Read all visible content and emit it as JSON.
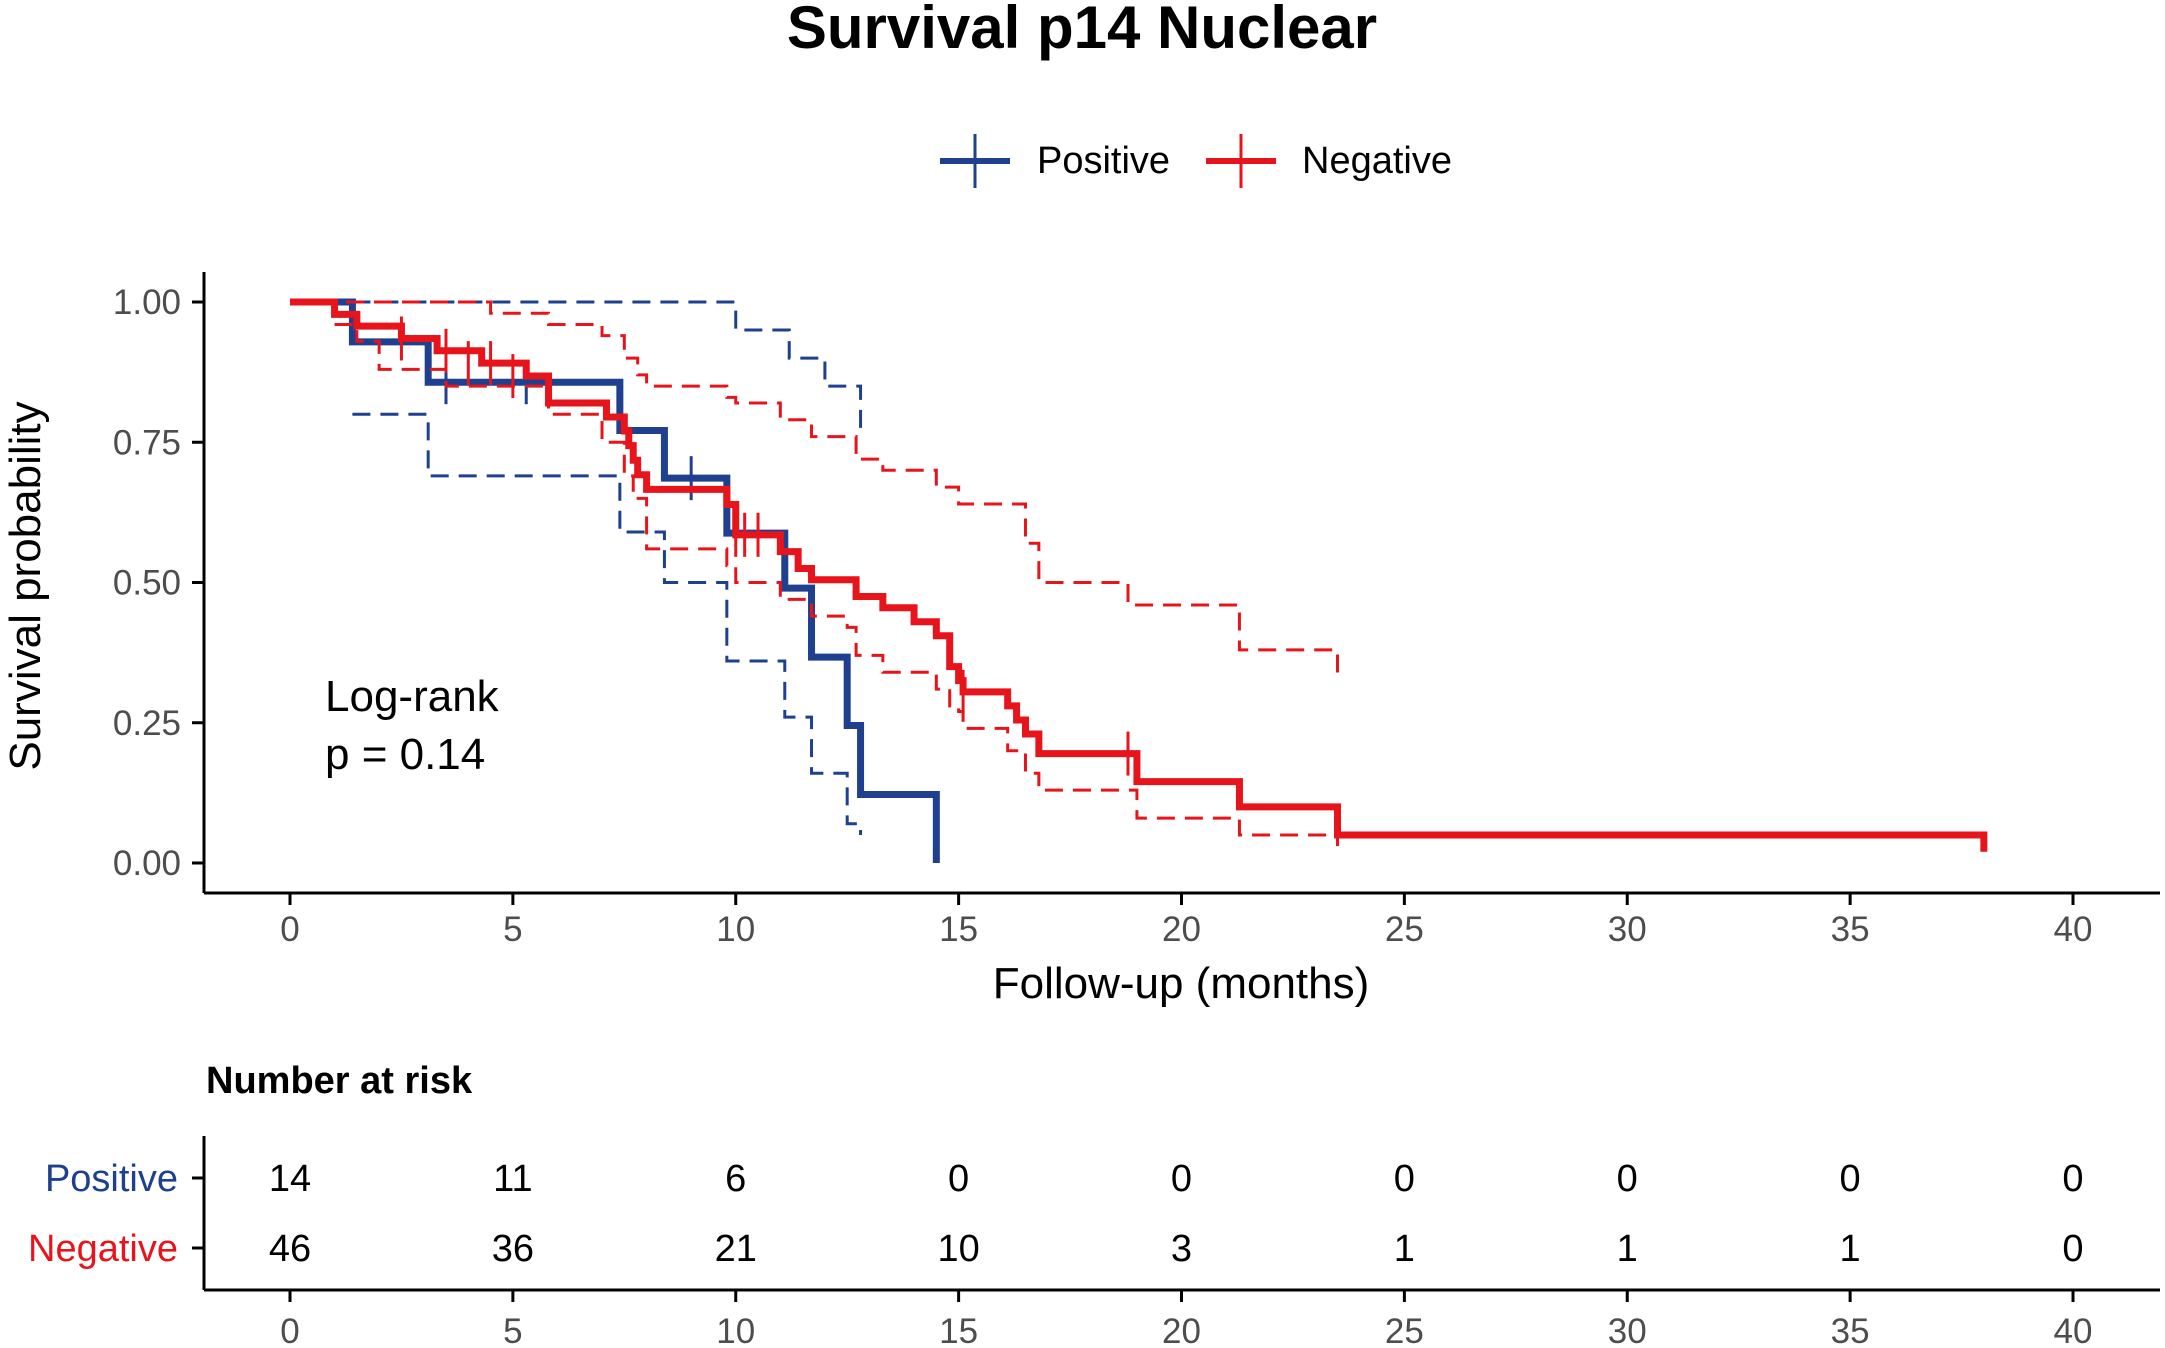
{
  "chart_data": {
    "type": "kaplan-meier",
    "title": "Survival p14 Nuclear",
    "legend": {
      "position": "top",
      "entries": [
        {
          "name": "Positive",
          "color": "#1F3F8F"
        },
        {
          "name": "Negative",
          "color": "#E8141B"
        }
      ]
    },
    "xlabel": "Follow-up (months)",
    "ylabel": "Survival probability",
    "xlim": [
      0,
      40
    ],
    "ylim": [
      0,
      1
    ],
    "xticks": [
      "0",
      "5",
      "10",
      "15",
      "20",
      "25",
      "30",
      "35",
      "40"
    ],
    "xtick_values": [
      0,
      5,
      10,
      15,
      20,
      25,
      30,
      35,
      40
    ],
    "yticks": [
      "0.00",
      "0.25",
      "0.50",
      "0.75",
      "1.00"
    ],
    "ytick_values": [
      0,
      0.25,
      0.5,
      0.75,
      1.0
    ],
    "annotation": {
      "line1": "Log-rank",
      "line2": "p = 0.14"
    },
    "series": [
      {
        "name": "Positive",
        "color": "#1F3F8F",
        "steps": [
          [
            0,
            1.0
          ],
          [
            1.4,
            0.929
          ],
          [
            3.1,
            0.857
          ],
          [
            7.4,
            0.771
          ],
          [
            8.4,
            0.686
          ],
          [
            9.8,
            0.588
          ],
          [
            11.1,
            0.49
          ],
          [
            11.7,
            0.367
          ],
          [
            12.5,
            0.245
          ],
          [
            12.8,
            0.122
          ],
          [
            14.5,
            0.122
          ],
          [
            14.5,
            0.0
          ]
        ],
        "upper": [
          [
            1.4,
            1.0
          ],
          [
            9.8,
            1.0
          ],
          [
            10.0,
            0.95
          ],
          [
            11.1,
            0.95
          ],
          [
            11.2,
            0.9
          ],
          [
            11.7,
            0.9
          ],
          [
            12.0,
            0.85
          ],
          [
            12.5,
            0.85
          ],
          [
            12.8,
            0.77
          ],
          [
            12.8,
            0.77
          ]
        ],
        "lower": [
          [
            1.4,
            0.8
          ],
          [
            3.1,
            0.8
          ],
          [
            3.1,
            0.69
          ],
          [
            7.4,
            0.69
          ],
          [
            7.4,
            0.59
          ],
          [
            8.4,
            0.59
          ],
          [
            8.4,
            0.5
          ],
          [
            9.8,
            0.5
          ],
          [
            9.8,
            0.36
          ],
          [
            11.1,
            0.36
          ],
          [
            11.1,
            0.26
          ],
          [
            11.7,
            0.26
          ],
          [
            11.7,
            0.16
          ],
          [
            12.5,
            0.16
          ],
          [
            12.5,
            0.07
          ],
          [
            12.8,
            0.07
          ],
          [
            12.8,
            0.05
          ]
        ],
        "censors": [
          [
            3.5,
            0.857
          ],
          [
            5.3,
            0.857
          ],
          [
            9.0,
            0.686
          ]
        ]
      },
      {
        "name": "Negative",
        "color": "#E8141B",
        "steps": [
          [
            0,
            1.0
          ],
          [
            1.0,
            0.978
          ],
          [
            1.5,
            0.957
          ],
          [
            2.5,
            0.935
          ],
          [
            3.3,
            0.913
          ],
          [
            4.3,
            0.891
          ],
          [
            5.3,
            0.868
          ],
          [
            5.8,
            0.844
          ],
          [
            5.8,
            0.82
          ],
          [
            7.1,
            0.795
          ],
          [
            7.5,
            0.77
          ],
          [
            7.6,
            0.744
          ],
          [
            7.7,
            0.718
          ],
          [
            7.8,
            0.692
          ],
          [
            8.0,
            0.666
          ],
          [
            9.8,
            0.639
          ],
          [
            10.0,
            0.612
          ],
          [
            10.0,
            0.585
          ],
          [
            10.2,
            0.585
          ],
          [
            11.0,
            0.555
          ],
          [
            11.4,
            0.525
          ],
          [
            11.7,
            0.505
          ],
          [
            12.5,
            0.505
          ],
          [
            12.7,
            0.475
          ],
          [
            13.3,
            0.455
          ],
          [
            14.0,
            0.43
          ],
          [
            14.5,
            0.405
          ],
          [
            14.8,
            0.375
          ],
          [
            14.8,
            0.35
          ],
          [
            15.0,
            0.325
          ],
          [
            15.1,
            0.305
          ],
          [
            16.1,
            0.28
          ],
          [
            16.3,
            0.255
          ],
          [
            16.5,
            0.23
          ],
          [
            16.8,
            0.195
          ],
          [
            19.0,
            0.145
          ],
          [
            21.3,
            0.1
          ],
          [
            23.5,
            0.05
          ],
          [
            38.0,
            0.05
          ],
          [
            38.0,
            0.02
          ]
        ],
        "upper": [
          [
            0,
            1.0
          ],
          [
            3.0,
            1.0
          ],
          [
            4.5,
            0.98
          ],
          [
            5.3,
            0.98
          ],
          [
            5.8,
            0.96
          ],
          [
            7.0,
            0.94
          ],
          [
            7.5,
            0.9
          ],
          [
            7.8,
            0.87
          ],
          [
            8.0,
            0.85
          ],
          [
            9.8,
            0.83
          ],
          [
            10.0,
            0.82
          ],
          [
            11.0,
            0.79
          ],
          [
            11.7,
            0.76
          ],
          [
            12.7,
            0.72
          ],
          [
            13.3,
            0.7
          ],
          [
            14.5,
            0.67
          ],
          [
            15.0,
            0.64
          ],
          [
            16.5,
            0.57
          ],
          [
            16.8,
            0.5
          ],
          [
            17.8,
            0.5
          ],
          [
            18.8,
            0.46
          ],
          [
            21.3,
            0.38
          ],
          [
            23.5,
            0.33
          ]
        ],
        "lower": [
          [
            1.0,
            0.96
          ],
          [
            1.5,
            0.93
          ],
          [
            2.0,
            0.88
          ],
          [
            3.5,
            0.85
          ],
          [
            5.8,
            0.82
          ],
          [
            5.8,
            0.8
          ],
          [
            7.0,
            0.75
          ],
          [
            7.5,
            0.69
          ],
          [
            7.7,
            0.65
          ],
          [
            8.0,
            0.56
          ],
          [
            9.8,
            0.53
          ],
          [
            10.0,
            0.5
          ],
          [
            11.0,
            0.47
          ],
          [
            11.7,
            0.44
          ],
          [
            12.5,
            0.42
          ],
          [
            12.7,
            0.37
          ],
          [
            13.3,
            0.34
          ],
          [
            14.5,
            0.31
          ],
          [
            14.8,
            0.28
          ],
          [
            15.0,
            0.27
          ],
          [
            15.1,
            0.24
          ],
          [
            16.1,
            0.2
          ],
          [
            16.5,
            0.16
          ],
          [
            16.8,
            0.13
          ],
          [
            19.0,
            0.1
          ],
          [
            19.0,
            0.08
          ],
          [
            21.3,
            0.05
          ],
          [
            23.5,
            0.03
          ]
        ],
        "censors": [
          [
            2.5,
            0.935
          ],
          [
            3.5,
            0.913
          ],
          [
            4.0,
            0.891
          ],
          [
            4.5,
            0.891
          ],
          [
            5.0,
            0.868
          ],
          [
            10.0,
            0.585
          ],
          [
            10.2,
            0.585
          ],
          [
            10.5,
            0.585
          ],
          [
            15.1,
            0.305
          ],
          [
            18.8,
            0.195
          ]
        ]
      }
    ]
  },
  "risk_table": {
    "title": "Number at risk",
    "time_values": [
      0,
      5,
      10,
      15,
      20,
      25,
      30,
      35,
      40
    ],
    "x_labels": [
      "0",
      "5",
      "10",
      "15",
      "20",
      "25",
      "30",
      "35",
      "40"
    ],
    "rows": [
      {
        "name": "Positive",
        "color": "#1F3F8F",
        "counts": [
          "14",
          "11",
          "6",
          "0",
          "0",
          "0",
          "0",
          "0",
          "0"
        ]
      },
      {
        "name": "Negative",
        "color": "#E8141B",
        "counts": [
          "46",
          "36",
          "21",
          "10",
          "3",
          "1",
          "1",
          "1",
          "0"
        ]
      }
    ]
  }
}
